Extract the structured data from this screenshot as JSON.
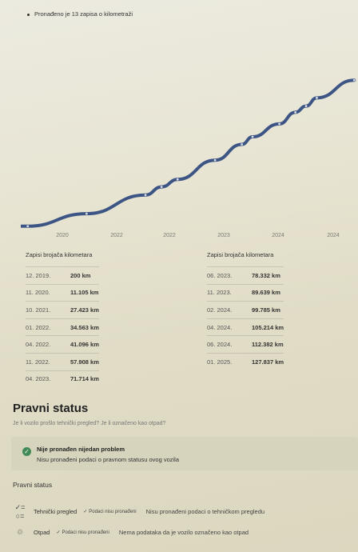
{
  "summary_text": "Pronađeno je 13 zapisa o kilometraži",
  "chart_data": {
    "type": "line",
    "title": "",
    "xlabel": "",
    "ylabel": "",
    "x_tick_labels": [
      "2020",
      "2022",
      "2022",
      "2023",
      "2024",
      "2024"
    ],
    "series": [
      {
        "x": [
          "12. 2019.",
          "11. 2020.",
          "10. 2021.",
          "01. 2022.",
          "04. 2022.",
          "11. 2022.",
          "04. 2023.",
          "06. 2023.",
          "11. 2023.",
          "02. 2024.",
          "04. 2024.",
          "06. 2024.",
          "01. 2025."
        ],
        "values": [
          200,
          11105,
          27423,
          34563,
          41096,
          57908,
          71714,
          78332,
          89639,
          99785,
          105214,
          112382,
          127837
        ]
      }
    ],
    "line_color": "#3d5585",
    "grid": false
  },
  "table": {
    "heading_left": "Zapisi brojača kilometara",
    "heading_right": "Zapisi brojača kilometara",
    "left_rows": [
      {
        "date": "12. 2019.",
        "value": "200 km"
      },
      {
        "date": "11. 2020.",
        "value": "11.105 km"
      },
      {
        "date": "10. 2021.",
        "value": "27.423 km"
      },
      {
        "date": "01. 2022.",
        "value": "34.563 km"
      },
      {
        "date": "04. 2022.",
        "value": "41.096 km"
      },
      {
        "date": "11. 2022.",
        "value": "57.908 km"
      },
      {
        "date": "04. 2023.",
        "value": "71.714 km"
      }
    ],
    "right_rows": [
      {
        "date": "06. 2023.",
        "value": "78.332 km"
      },
      {
        "date": "11. 2023.",
        "value": "89.639 km"
      },
      {
        "date": "02. 2024.",
        "value": "99.785 km"
      },
      {
        "date": "04. 2024.",
        "value": "105.214 km"
      },
      {
        "date": "06. 2024.",
        "value": "112.382 km"
      },
      {
        "date": "01. 2025.",
        "value": "127.837 km"
      }
    ]
  },
  "legal": {
    "title": "Pravni status",
    "subtitle": "Je li vozilo prošlo tehnički pregled? Je li označeno kao otpad?",
    "alert_title": "Nije pronađen nijedan problem",
    "alert_text": "Nisu pronađeni podaci o pravnom statusu ovog vozila",
    "section_label": "Pravni status",
    "items": [
      {
        "icon": "checklist-icon",
        "label": "Tehnički pregled",
        "badge": "Podaci nisu pronađeni",
        "desc": "Nisu pronađeni podaci o tehničkom pregledu"
      },
      {
        "icon": "recycle-icon",
        "label": "Otpad",
        "badge": "Podaci nisu pronađeni",
        "desc": "Nema podataka da je vozilo označeno kao otpad"
      }
    ]
  }
}
